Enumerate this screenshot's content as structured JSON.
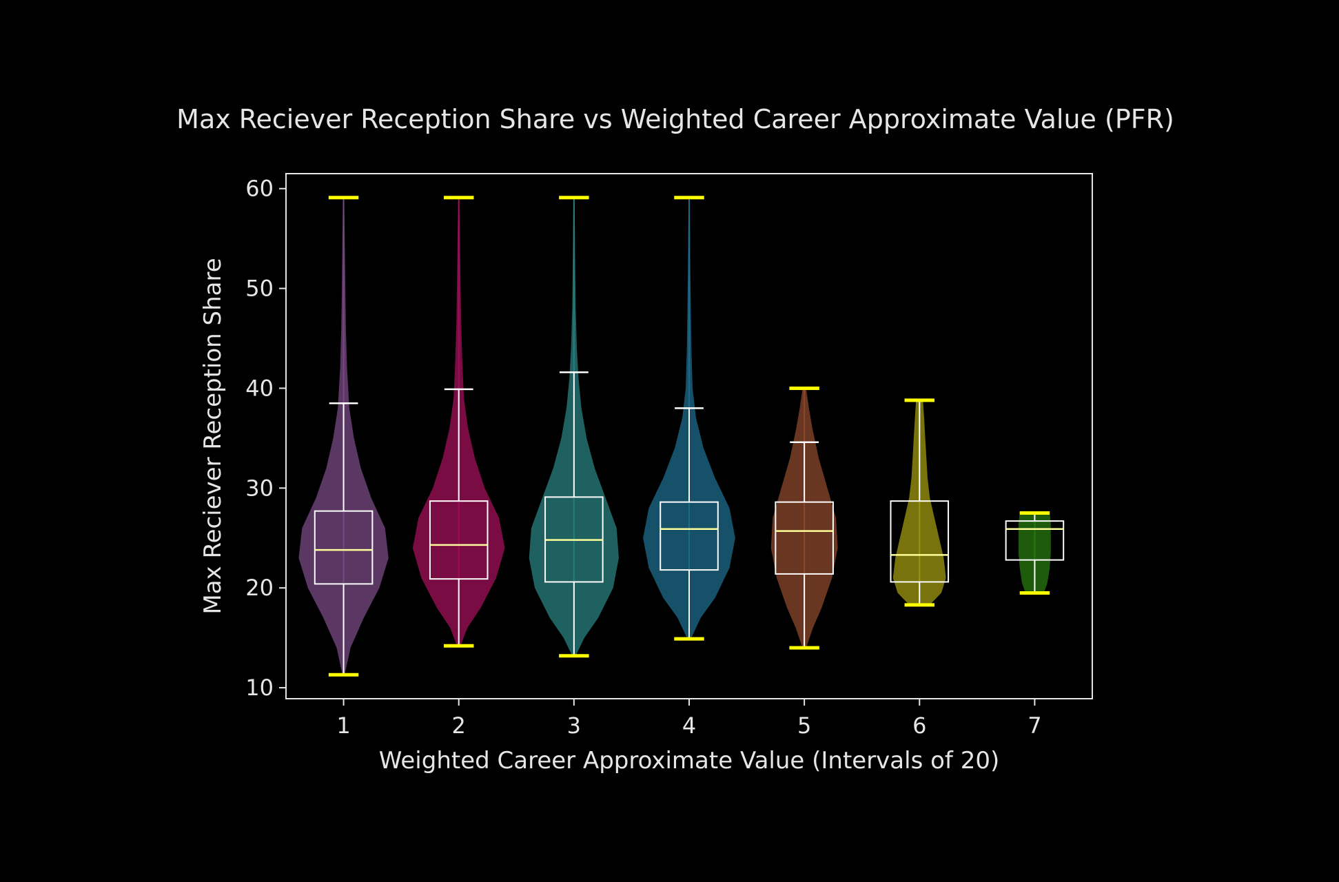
{
  "chart_data": {
    "type": "violin",
    "title": "Max Reciever Reception Share vs Weighted Career Approximate Value (PFR)",
    "xlabel": "Weighted Career Approximate Value (Intervals of 20)",
    "ylabel": "Max Reciever Reception Share",
    "categories": [
      "1",
      "2",
      "3",
      "4",
      "5",
      "6",
      "7"
    ],
    "y_ticks": [
      10,
      20,
      30,
      40,
      50,
      60
    ],
    "y_tick_labels": [
      "10",
      "20",
      "30",
      "40",
      "50",
      "60"
    ],
    "ylim": [
      8.9,
      61.5
    ],
    "xlim": [
      0.5,
      7.5
    ],
    "grid": false,
    "legend": "none",
    "background_color": "#000000",
    "text_color": "#e6e6e6",
    "violin_extrema_color": "#ffff00",
    "box_color": "#ffffff",
    "median_color": "#ffff99",
    "series": [
      {
        "x": 1,
        "color": "#7a4a86",
        "min": 11.3,
        "max": 59.1,
        "whisker_low": 11.3,
        "whisker_high": 38.5,
        "q1": 20.4,
        "median": 23.8,
        "q3": 27.7,
        "density": [
          [
            11.3,
            0.02
          ],
          [
            14,
            0.12
          ],
          [
            17,
            0.35
          ],
          [
            20,
            0.62
          ],
          [
            23,
            0.78
          ],
          [
            26,
            0.72
          ],
          [
            29,
            0.48
          ],
          [
            32,
            0.3
          ],
          [
            35,
            0.18
          ],
          [
            38,
            0.1
          ],
          [
            42,
            0.06
          ],
          [
            46,
            0.04
          ],
          [
            50,
            0.03
          ],
          [
            55,
            0.02
          ],
          [
            59.1,
            0.01
          ]
        ]
      },
      {
        "x": 2,
        "color": "#a0105a",
        "min": 14.2,
        "max": 59.1,
        "whisker_low": 14.2,
        "whisker_high": 39.9,
        "q1": 20.9,
        "median": 24.3,
        "q3": 28.7,
        "density": [
          [
            14.2,
            0.03
          ],
          [
            16,
            0.15
          ],
          [
            18,
            0.38
          ],
          [
            21,
            0.65
          ],
          [
            24,
            0.8
          ],
          [
            27,
            0.7
          ],
          [
            30,
            0.45
          ],
          [
            33,
            0.28
          ],
          [
            36,
            0.16
          ],
          [
            39,
            0.09
          ],
          [
            43,
            0.06
          ],
          [
            47,
            0.04
          ],
          [
            51,
            0.03
          ],
          [
            55,
            0.02
          ],
          [
            59.1,
            0.01
          ]
        ]
      },
      {
        "x": 3,
        "color": "#2a8080",
        "min": 13.2,
        "max": 59.1,
        "whisker_low": 13.2,
        "whisker_high": 41.6,
        "q1": 20.6,
        "median": 24.8,
        "q3": 29.1,
        "density": [
          [
            13.2,
            0.03
          ],
          [
            15,
            0.18
          ],
          [
            17,
            0.42
          ],
          [
            20,
            0.68
          ],
          [
            23,
            0.78
          ],
          [
            26,
            0.74
          ],
          [
            29,
            0.55
          ],
          [
            32,
            0.36
          ],
          [
            35,
            0.22
          ],
          [
            38,
            0.13
          ],
          [
            41,
            0.08
          ],
          [
            44,
            0.05
          ],
          [
            48,
            0.03
          ],
          [
            53,
            0.02
          ],
          [
            59.1,
            0.01
          ]
        ]
      },
      {
        "x": 4,
        "color": "#1e6c8c",
        "min": 14.9,
        "max": 59.1,
        "whisker_low": 14.9,
        "whisker_high": 38.0,
        "q1": 21.8,
        "median": 25.9,
        "q3": 28.6,
        "density": [
          [
            14.9,
            0.03
          ],
          [
            17,
            0.2
          ],
          [
            19,
            0.45
          ],
          [
            22,
            0.7
          ],
          [
            25,
            0.8
          ],
          [
            28,
            0.7
          ],
          [
            31,
            0.45
          ],
          [
            34,
            0.25
          ],
          [
            37,
            0.12
          ],
          [
            40,
            0.06
          ],
          [
            44,
            0.04
          ],
          [
            48,
            0.03
          ],
          [
            52,
            0.02
          ],
          [
            56,
            0.015
          ],
          [
            59.1,
            0.01
          ]
        ]
      },
      {
        "x": 5,
        "color": "#8c4a2c",
        "min": 14.0,
        "max": 40.0,
        "whisker_low": 14.0,
        "whisker_high": 34.6,
        "q1": 21.4,
        "median": 25.7,
        "q3": 28.6,
        "density": [
          [
            14,
            0.03
          ],
          [
            16,
            0.15
          ],
          [
            18,
            0.3
          ],
          [
            21,
            0.48
          ],
          [
            24,
            0.58
          ],
          [
            27,
            0.55
          ],
          [
            30,
            0.4
          ],
          [
            33,
            0.25
          ],
          [
            36,
            0.14
          ],
          [
            38,
            0.08
          ],
          [
            40,
            0.03
          ]
        ]
      },
      {
        "x": 6,
        "color": "#a09a10",
        "min": 18.3,
        "max": 38.8,
        "whisker_low": 18.3,
        "whisker_high": 38.8,
        "q1": 20.6,
        "median": 23.3,
        "q3": 28.7,
        "density": [
          [
            18.3,
            0.18
          ],
          [
            19.5,
            0.38
          ],
          [
            21,
            0.46
          ],
          [
            23,
            0.42
          ],
          [
            25,
            0.34
          ],
          [
            27,
            0.26
          ],
          [
            29,
            0.18
          ],
          [
            31,
            0.14
          ],
          [
            33,
            0.12
          ],
          [
            35,
            0.1
          ],
          [
            37,
            0.08
          ],
          [
            38.8,
            0.06
          ]
        ]
      },
      {
        "x": 7,
        "color": "#2a7a10",
        "min": 19.5,
        "max": 27.5,
        "whisker_low": 19.5,
        "whisker_high": 27.5,
        "q1": 22.8,
        "median": 25.9,
        "q3": 26.7,
        "density": [
          [
            19.5,
            0.16
          ],
          [
            20.5,
            0.22
          ],
          [
            22,
            0.26
          ],
          [
            23.5,
            0.28
          ],
          [
            25,
            0.28
          ],
          [
            26.5,
            0.28
          ],
          [
            27.5,
            0.26
          ]
        ]
      }
    ]
  }
}
